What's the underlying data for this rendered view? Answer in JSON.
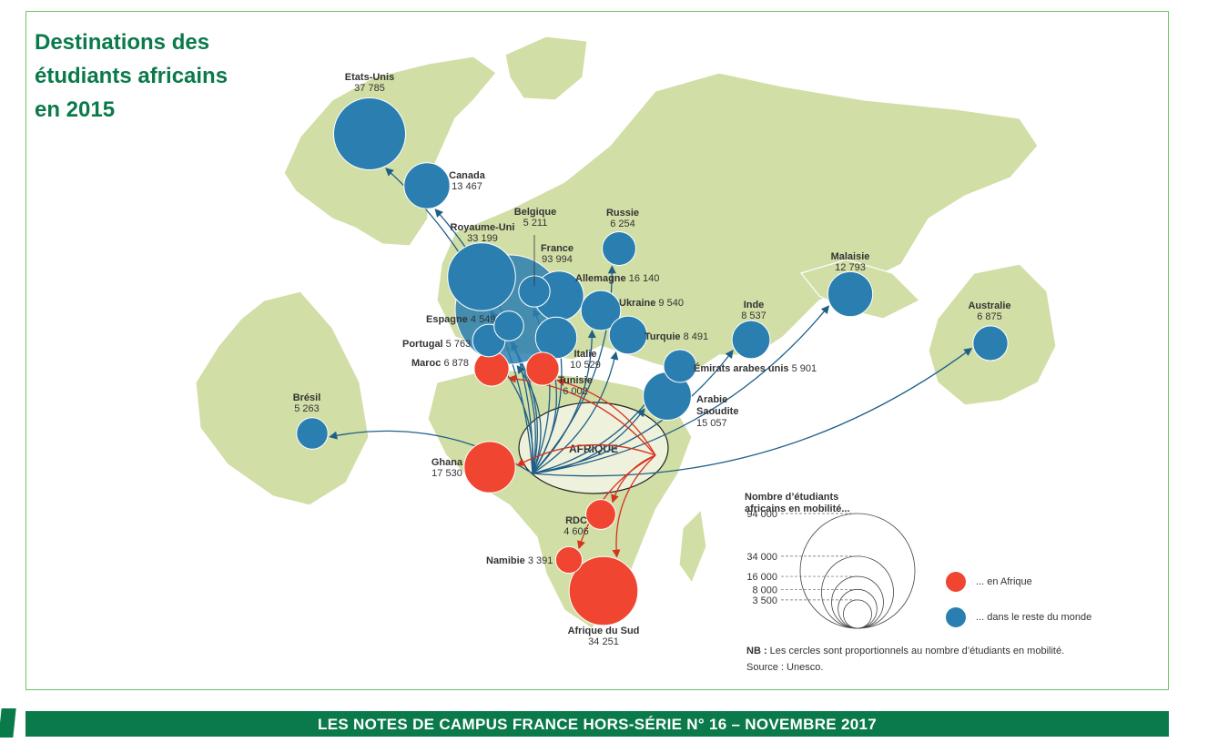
{
  "title": {
    "line1": "Destinations des",
    "line2": "étudiants africains",
    "line3": "en 2015"
  },
  "center_label": "AFRIQUE",
  "colors": {
    "africa": "#f04530",
    "world": "#2b7fb0",
    "land": "#d1dea6",
    "title": "#0a7a4a"
  },
  "destinations": [
    {
      "id": "etats-unis",
      "name": "Etats-Unis",
      "value": "37 785",
      "n": 37785,
      "region": "world"
    },
    {
      "id": "canada",
      "name": "Canada",
      "value": "13 467",
      "n": 13467,
      "region": "world"
    },
    {
      "id": "belgique",
      "name": "Belgique",
      "value": "5 211",
      "n": 5211,
      "region": "world"
    },
    {
      "id": "russie",
      "name": "Russie",
      "value": "6 254",
      "n": 6254,
      "region": "world"
    },
    {
      "id": "royaume-uni",
      "name": "Royaume-Uni",
      "value": "33 199",
      "n": 33199,
      "region": "world"
    },
    {
      "id": "france",
      "name": "France",
      "value": "93 994",
      "n": 93994,
      "region": "world"
    },
    {
      "id": "allemagne",
      "name": "Allemagne",
      "value": "16 140",
      "n": 16140,
      "region": "world"
    },
    {
      "id": "ukraine",
      "name": "Ukraine",
      "value": "9 540",
      "n": 9540,
      "region": "world"
    },
    {
      "id": "espagne",
      "name": "Espagne",
      "value": "4 549",
      "n": 4549,
      "region": "world"
    },
    {
      "id": "portugal",
      "name": "Portugal",
      "value": "5 763",
      "n": 5763,
      "region": "world"
    },
    {
      "id": "italie",
      "name": "Italie",
      "value": "10 529",
      "n": 10529,
      "region": "world"
    },
    {
      "id": "turquie",
      "name": "Turquie",
      "value": "8 491",
      "n": 8491,
      "region": "world"
    },
    {
      "id": "malaisie",
      "name": "Malaisie",
      "value": "12 793",
      "n": 12793,
      "region": "world"
    },
    {
      "id": "inde",
      "name": "Inde",
      "value": "8 537",
      "n": 8537,
      "region": "world"
    },
    {
      "id": "australie",
      "name": "Australie",
      "value": "6 875",
      "n": 6875,
      "region": "world"
    },
    {
      "id": "emirats",
      "name": "Émirats arabes unis",
      "value": "5 901",
      "n": 5901,
      "region": "world"
    },
    {
      "id": "arabie",
      "name": "Arabie Saoudite",
      "value": "15 057",
      "n": 15057,
      "region": "world"
    },
    {
      "id": "bresil",
      "name": "Brésil",
      "value": "5 263",
      "n": 5263,
      "region": "world"
    },
    {
      "id": "maroc",
      "name": "Maroc",
      "value": "6 878",
      "n": 6878,
      "region": "africa"
    },
    {
      "id": "tunisie",
      "name": "Tunisie",
      "value": "6 002",
      "n": 6002,
      "region": "africa"
    },
    {
      "id": "ghana",
      "name": "Ghana",
      "value": "17 530",
      "n": 17530,
      "region": "africa"
    },
    {
      "id": "rdc",
      "name": "RDC",
      "value": "4 606",
      "n": 4606,
      "region": "africa"
    },
    {
      "id": "namibie",
      "name": "Namibie",
      "value": "3 391",
      "n": 3391,
      "region": "africa"
    },
    {
      "id": "afrique-du-sud",
      "name": "Afrique du Sud",
      "value": "34 251",
      "n": 34251,
      "region": "africa"
    }
  ],
  "legend": {
    "title1": "Nombre d’étudiants",
    "title2": "africains en mobilité...",
    "scale": [
      {
        "label": "94 000",
        "n": 94000
      },
      {
        "label": "34 000",
        "n": 34000
      },
      {
        "label": "16 000",
        "n": 16000
      },
      {
        "label": "8 000",
        "n": 8000
      },
      {
        "label": "3 500",
        "n": 3500
      }
    ],
    "africa": "... en Afrique",
    "world": "... dans le reste du monde"
  },
  "note": {
    "prefix": "NB :",
    "text": " Les cercles sont proportionnels au nombre d’étudiants en mobilité.",
    "source": "Source : Unesco."
  },
  "footer": "LES NOTES DE CAMPUS FRANCE HORS-SÉRIE N° 16 – NOVEMBRE 2017"
}
